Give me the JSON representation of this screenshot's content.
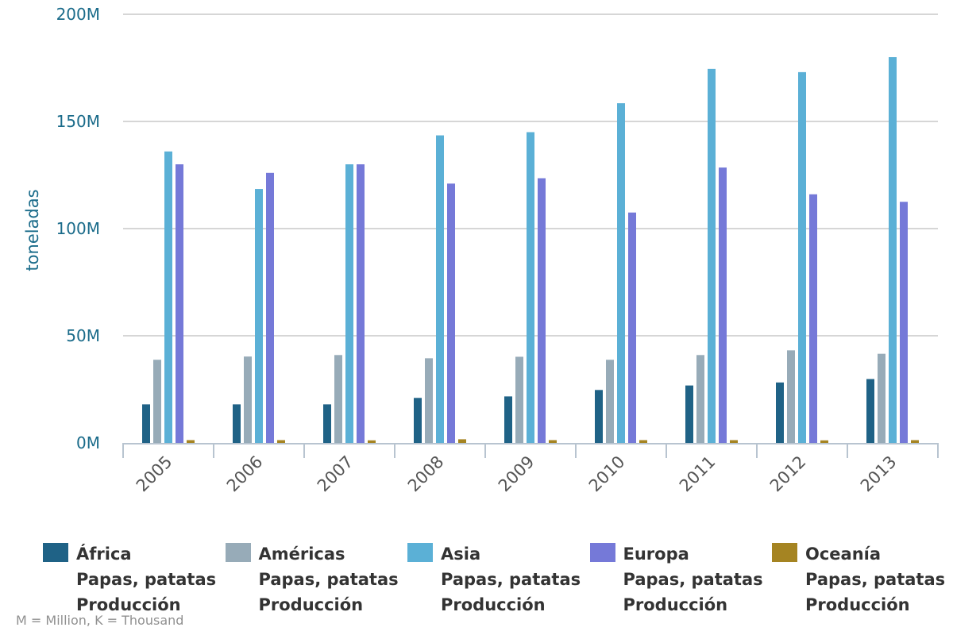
{
  "chart_data": {
    "type": "bar",
    "categories": [
      "2005",
      "2006",
      "2007",
      "2008",
      "2009",
      "2010",
      "2011",
      "2012",
      "2013"
    ],
    "series": [
      {
        "name": "África",
        "line2": "Papas, patatas",
        "line3": "Producción",
        "color": "#1f6286",
        "values": [
          18000000,
          18000000,
          18000000,
          21000000,
          21700000,
          24700000,
          26800000,
          28200000,
          29800000
        ]
      },
      {
        "name": "Américas",
        "line2": "Papas, patatas",
        "line3": "Producción",
        "color": "#97abb8",
        "values": [
          38800000,
          40300000,
          41000000,
          39500000,
          40200000,
          38800000,
          41000000,
          43200000,
          41600000
        ]
      },
      {
        "name": "Asia",
        "line2": "Papas, patatas",
        "line3": "Producción",
        "color": "#5bb0d6",
        "values": [
          136000000,
          118500000,
          130000000,
          143500000,
          145000000,
          158500000,
          174500000,
          173000000,
          180000000
        ]
      },
      {
        "name": "Europa",
        "line2": "Papas, patatas",
        "line3": "Producción",
        "color": "#7579d8",
        "values": [
          130000000,
          126000000,
          130000000,
          121000000,
          123500000,
          107500000,
          128500000,
          116000000,
          112500000
        ]
      },
      {
        "name": "Oceanía",
        "line2": "Papas, patatas",
        "line3": "Producción",
        "color": "#a58422",
        "values": [
          1300000,
          1300000,
          1200000,
          1700000,
          1300000,
          1300000,
          1300000,
          1200000,
          1300000
        ]
      }
    ],
    "ylabel": "toneladas",
    "ylim": [
      0,
      200000000
    ],
    "yticks": [
      {
        "value": 0,
        "label": "0M"
      },
      {
        "value": 50000000,
        "label": "50M"
      },
      {
        "value": 100000000,
        "label": "100M"
      },
      {
        "value": 150000000,
        "label": "150M"
      },
      {
        "value": 200000000,
        "label": "200M"
      }
    ],
    "grid": true,
    "legend_position": "bottom"
  },
  "footnote": "M = Million, K = Thousand"
}
